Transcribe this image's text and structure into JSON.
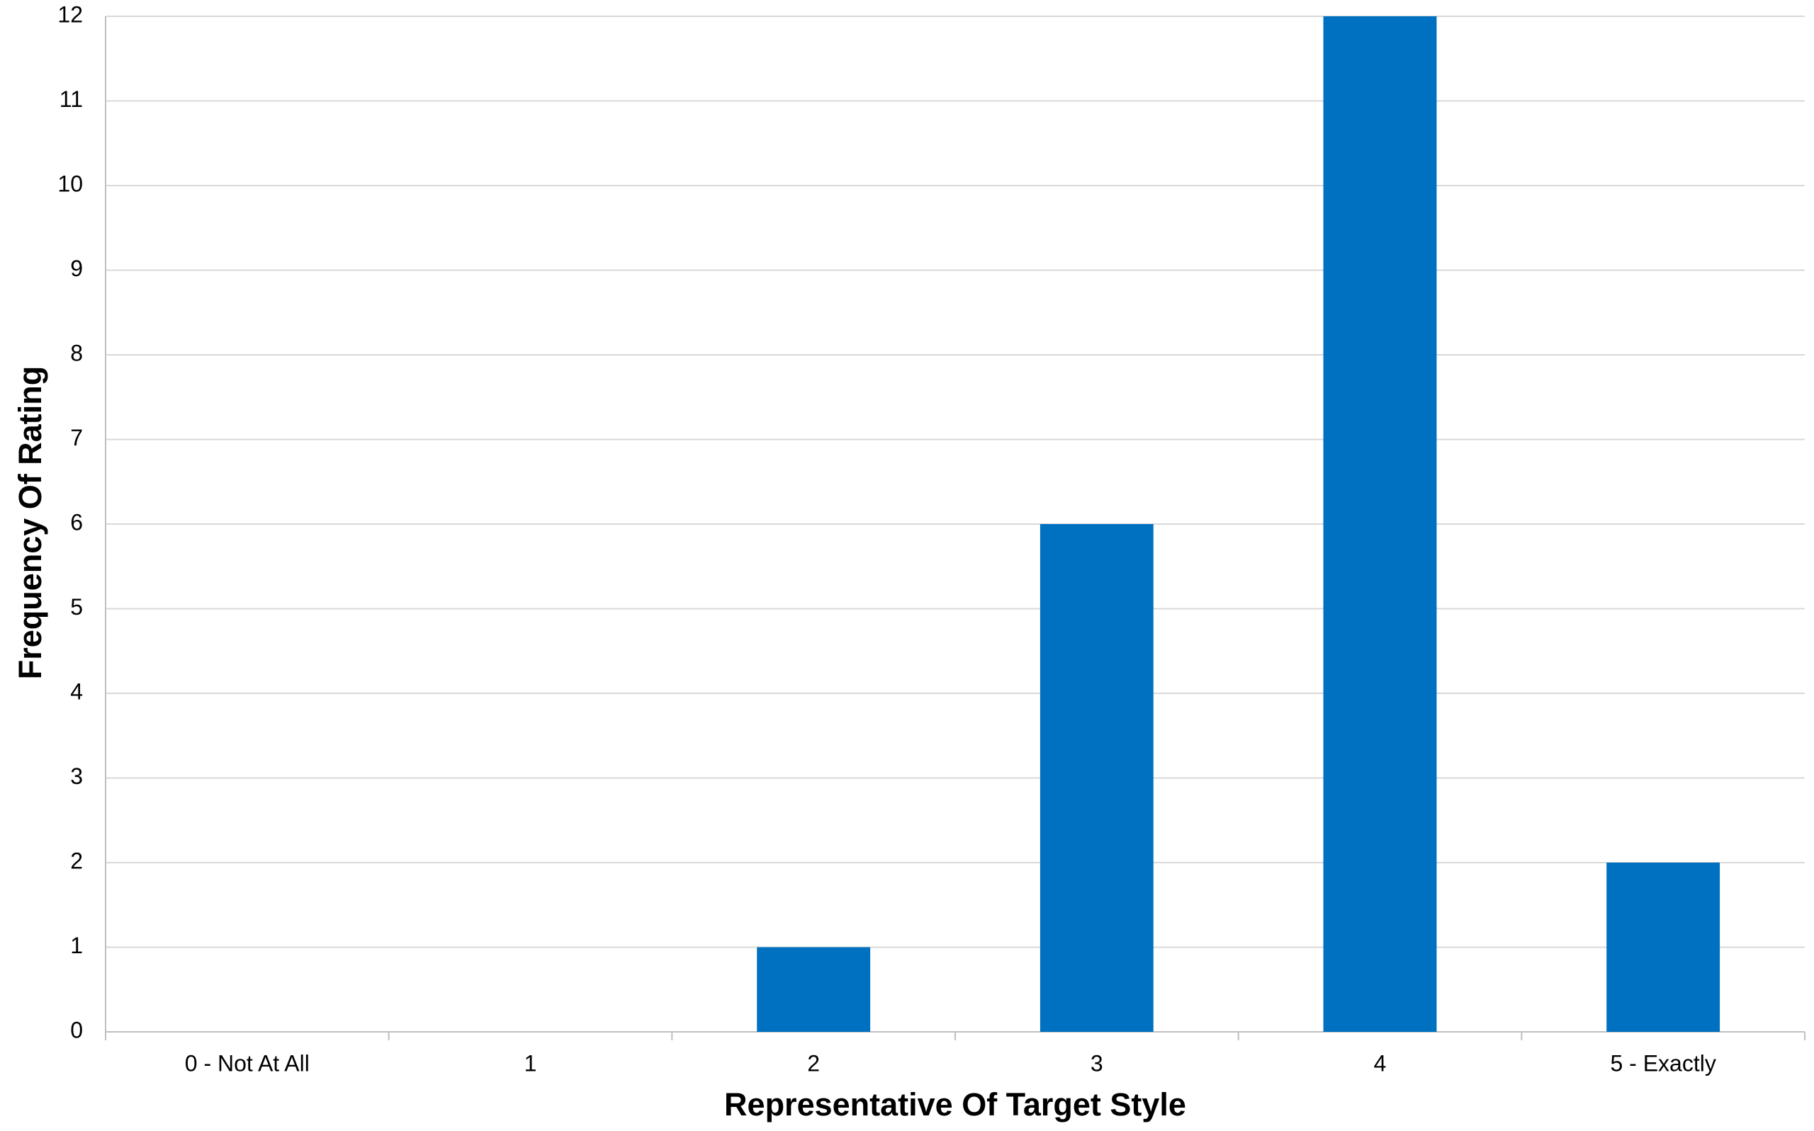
{
  "chart_data": {
    "type": "bar",
    "x_label": "Representative Of Target Style",
    "y_label": "Frequency Of Rating",
    "categories": [
      "0 - Not At All",
      "1",
      "2",
      "3",
      "4",
      "5 - Exactly"
    ],
    "values": [
      0,
      0,
      1,
      6,
      12,
      2
    ],
    "color": "#0070c0",
    "ylim": [
      0,
      12
    ],
    "yticks": [
      0,
      1,
      2,
      3,
      4,
      5,
      6,
      7,
      8,
      9,
      10,
      11,
      12
    ],
    "grid": true
  }
}
